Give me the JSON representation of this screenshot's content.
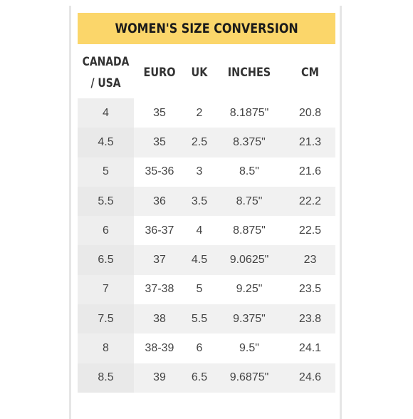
{
  "title": "WOMEN'S SIZE CONVERSION",
  "columns": [
    "CANADA / USA",
    "EURO",
    "UK",
    "INCHES",
    "CM"
  ],
  "rows": [
    [
      "4",
      "35",
      "2",
      "8.1875\"",
      "20.8"
    ],
    [
      "4.5",
      "35",
      "2.5",
      "8.375\"",
      "21.3"
    ],
    [
      "5",
      "35-36",
      "3",
      "8.5\"",
      "21.6"
    ],
    [
      "5.5",
      "36",
      "3.5",
      "8.75\"",
      "22.2"
    ],
    [
      "6",
      "36-37",
      "4",
      "8.875\"",
      "22.5"
    ],
    [
      "6.5",
      "37",
      "4.5",
      "9.0625\"",
      "23"
    ],
    [
      "7",
      "37-38",
      "5",
      "9.25\"",
      "23.5"
    ],
    [
      "7.5",
      "38",
      "5.5",
      "9.375\"",
      "23.8"
    ],
    [
      "8",
      "38-39",
      "6",
      "9.5\"",
      "24.1"
    ],
    [
      "8.5",
      "39",
      "6.5",
      "9.6875\"",
      "24.6"
    ]
  ],
  "colors": {
    "title_bg": "#fbd66a",
    "stripe": "#f1f1f1",
    "first_col": "#eeeeee"
  }
}
